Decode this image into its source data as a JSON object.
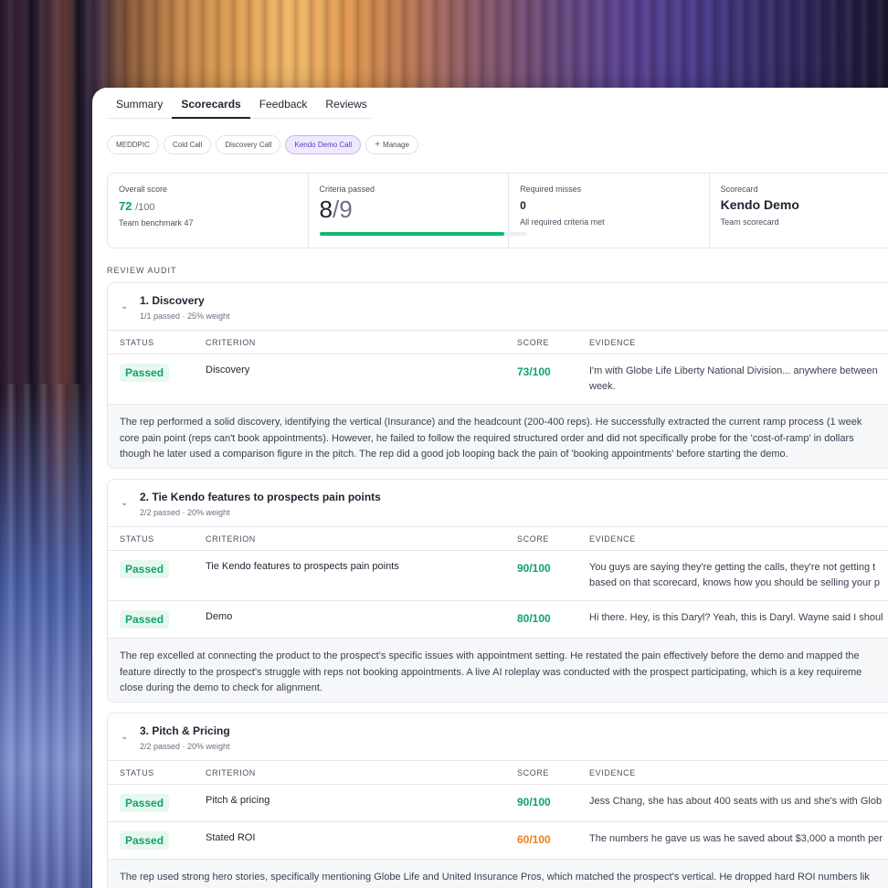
{
  "tabs": [
    "Summary",
    "Scorecards",
    "Feedback",
    "Reviews"
  ],
  "pills": [
    "MEDDPIC",
    "Cold Call",
    "Discovery Call",
    "Kendo Demo Call",
    "Manage"
  ],
  "stats": {
    "overall": {
      "label": "Overall score",
      "value": "72",
      "denom": "/100",
      "sub": "Team benchmark 47"
    },
    "criteria": {
      "label": "Criteria passed",
      "num": "8",
      "den": "/9",
      "progress": 0.89
    },
    "required": {
      "label": "Required misses",
      "value": "0",
      "sub": "All required criteria met"
    },
    "scorecard": {
      "label": "Scorecard",
      "name": "Kendo Demo",
      "sub": "Team scorecard"
    }
  },
  "audit_title": "REVIEW AUDIT",
  "columns": {
    "status": "STATUS",
    "criterion": "CRITERION",
    "score": "SCORE",
    "evidence": "EVIDENCE"
  },
  "sections": [
    {
      "title": "1. Discovery",
      "meta": "1/1 passed · 25% weight",
      "rows": [
        {
          "status": "Passed",
          "criterion": "Discovery",
          "score": "73/100",
          "evidence_1": "I'm with Globe Life Liberty National Division... anywhere between",
          "evidence_2": "week."
        }
      ],
      "summary": [
        "The rep performed a solid discovery, identifying the vertical (Insurance) and the headcount (200-400 reps). He successfully extracted the current ramp process (1 week",
        "core pain point (reps can't book appointments). However, he failed to follow the required structured order and did not specifically probe for the 'cost-of-ramp' in dollars",
        "though he later used a comparison figure in the pitch. The rep did a good job looping back the pain of 'booking appointments' before starting the demo."
      ]
    },
    {
      "title": "2. Tie Kendo features to prospects pain points",
      "meta": "2/2 passed · 20% weight",
      "rows": [
        {
          "status": "Passed",
          "criterion": "Tie Kendo features to prospects pain points",
          "score": "90/100",
          "evidence_1": "You guys are saying they're getting the calls, they're not getting t",
          "evidence_2": "based on that scorecard, knows how you should be selling your p"
        },
        {
          "status": "Passed",
          "criterion": "Demo",
          "score": "80/100",
          "evidence_1": "Hi there. Hey, is this Daryl? Yeah, this is Daryl. Wayne said I shoul",
          "evidence_2": ""
        }
      ],
      "summary": [
        "The rep excelled at connecting the product to the prospect's specific issues with appointment setting. He restated the pain effectively before the demo and mapped the",
        "feature directly to the prospect's struggle with reps not booking appointments. A live AI roleplay was conducted with the prospect participating, which is a key requireme",
        "close during the demo to check for alignment."
      ]
    },
    {
      "title": "3. Pitch & Pricing",
      "meta": "2/2 passed · 20% weight",
      "rows": [
        {
          "status": "Passed",
          "criterion": "Pitch & pricing",
          "score": "90/100",
          "evidence_1": "Jess Chang, she has about 400 seats with us and she's with Glob",
          "evidence_2": ""
        },
        {
          "status": "Passed",
          "criterion": "Stated ROI",
          "score": "60/100",
          "evidence_1": "The numbers he gave us was he saved about $3,000 a month per",
          "evidence_2": ""
        }
      ],
      "summary": [
        "The rep used strong hero stories, specifically mentioning Globe Life and United Insurance Pros, which matched the prospect's vertical. He dropped hard ROI numbers lik"
      ]
    }
  ],
  "colors": {
    "pass": "#10a36a",
    "warn": "#e8811a",
    "accent": "#5b3fb8"
  }
}
